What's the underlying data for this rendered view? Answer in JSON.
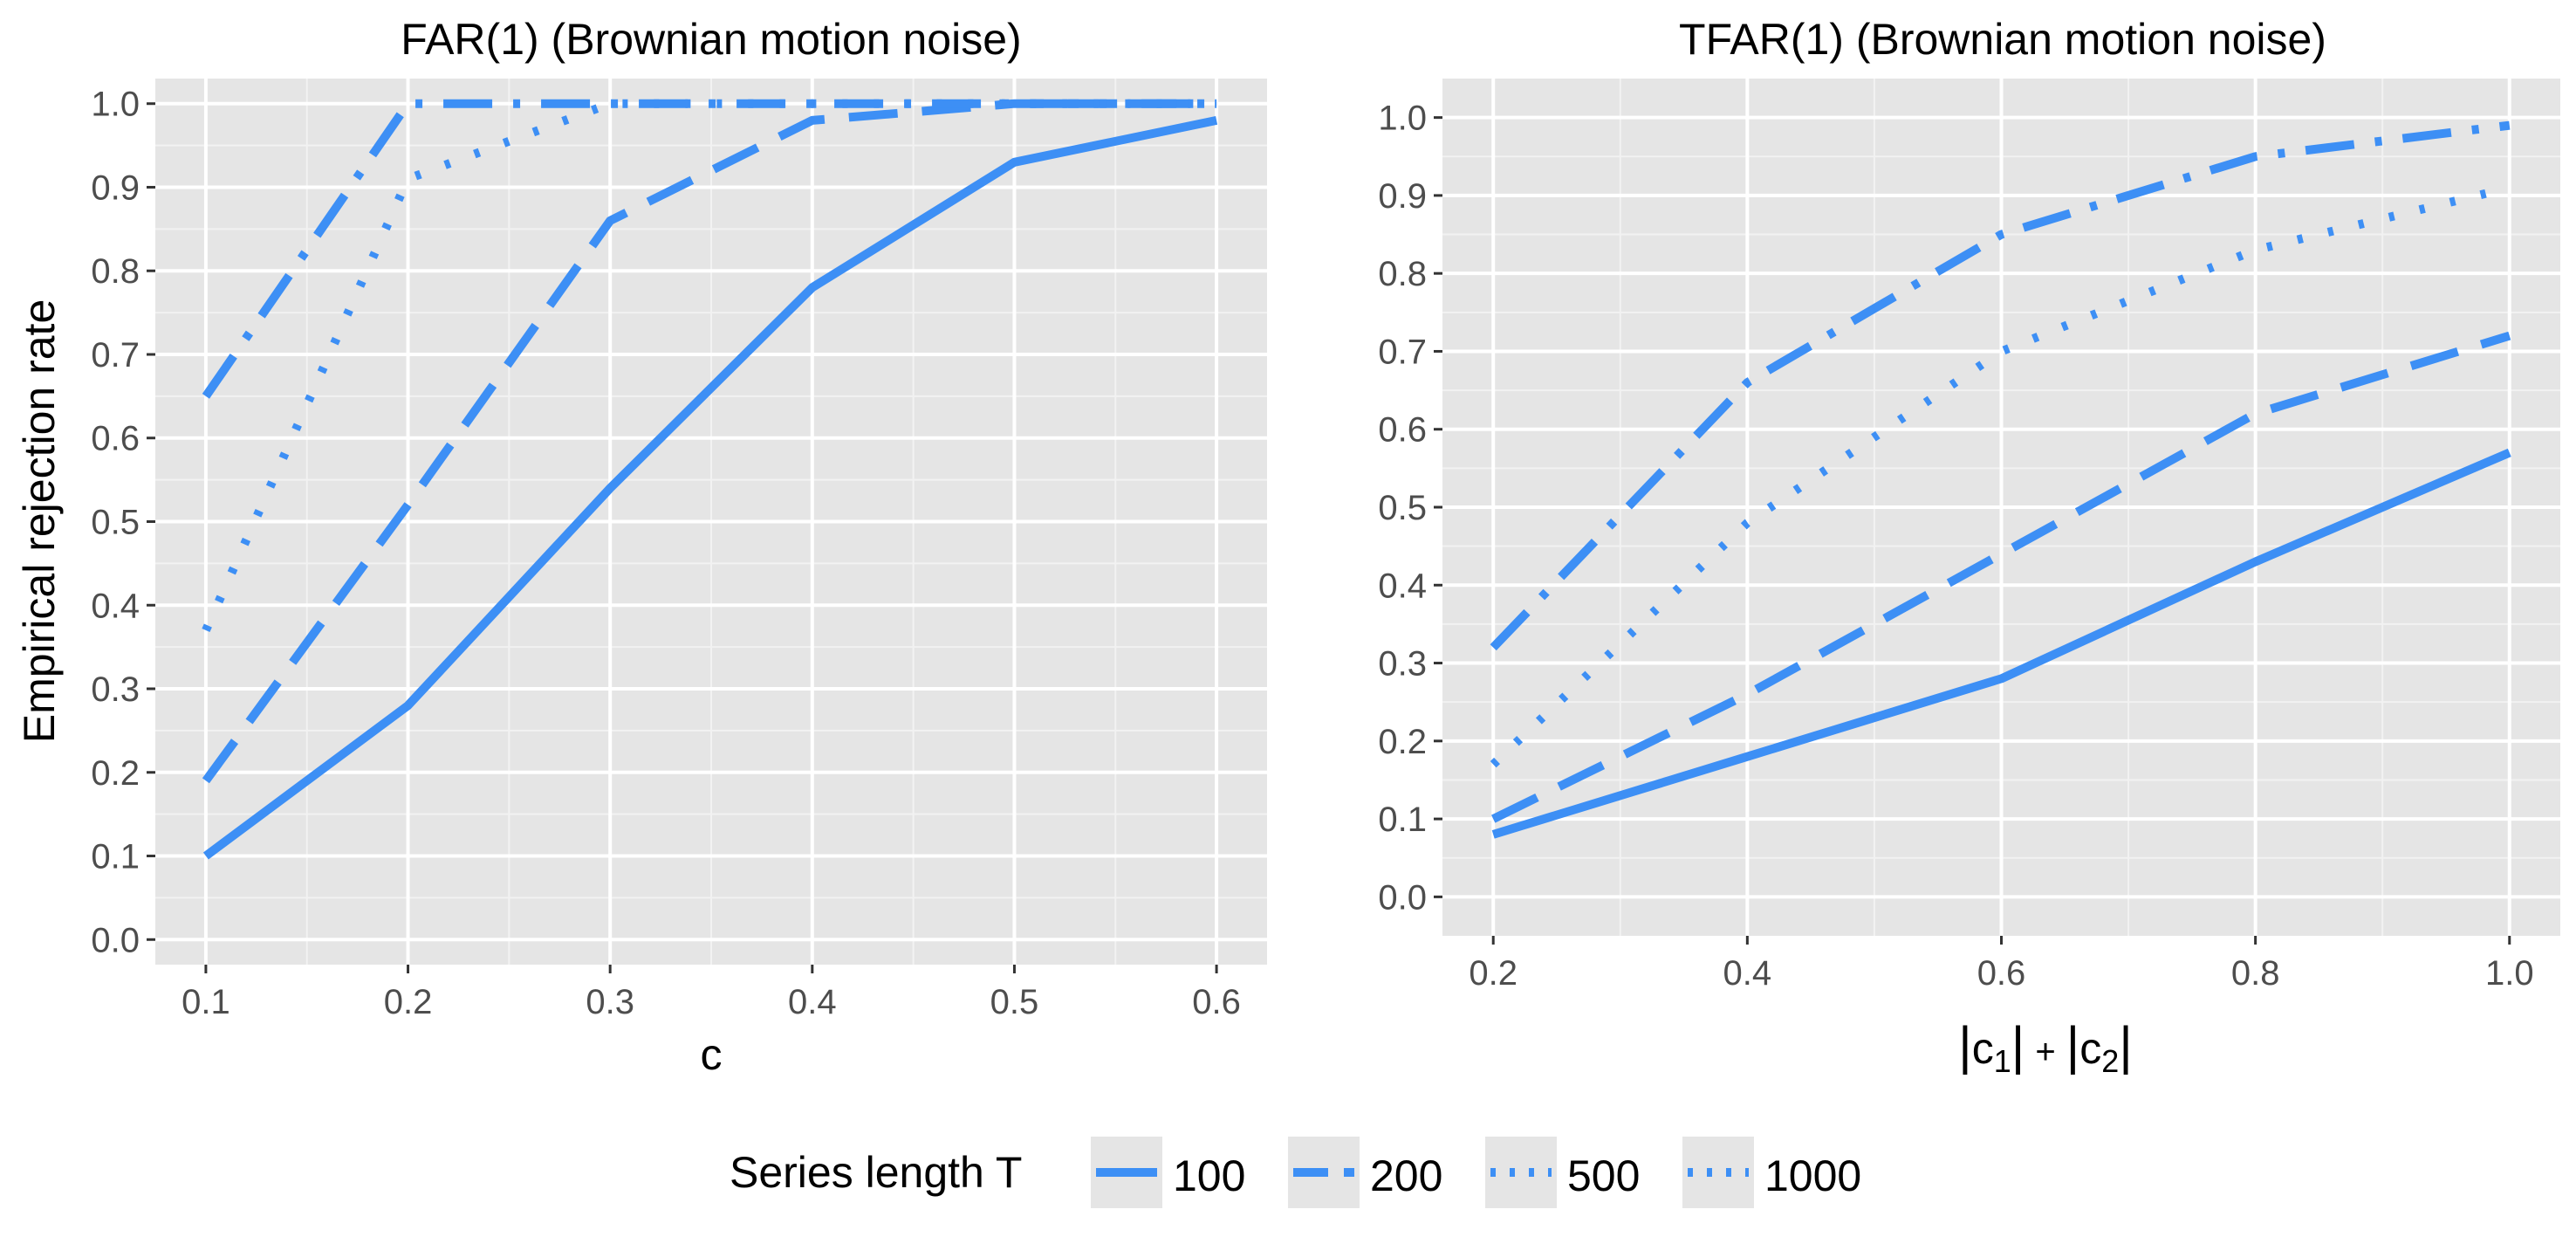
{
  "chart_data": [
    {
      "type": "line",
      "title": "FAR(1) (Brownian motion noise)",
      "xlabel": "c",
      "ylabel": "Empirical rejection rate",
      "xlim": [
        0.075,
        0.625
      ],
      "ylim": [
        -0.03,
        1.03
      ],
      "x_ticks": [
        "0.1",
        "0.2",
        "0.3",
        "0.4",
        "0.5",
        "0.6"
      ],
      "y_ticks": [
        "0.0",
        "0.1",
        "0.2",
        "0.3",
        "0.4",
        "0.5",
        "0.6",
        "0.7",
        "0.8",
        "0.9",
        "1.0"
      ],
      "grid": true,
      "series": [
        {
          "name": "100",
          "x": [
            0.1,
            0.2,
            0.3,
            0.4,
            0.5,
            0.6
          ],
          "values": [
            0.1,
            0.28,
            0.54,
            0.78,
            0.93,
            0.98
          ]
        },
        {
          "name": "200",
          "x": [
            0.1,
            0.2,
            0.3,
            0.4,
            0.5,
            0.6
          ],
          "values": [
            0.19,
            0.52,
            0.86,
            0.98,
            1.0,
            1.0
          ]
        },
        {
          "name": "500",
          "x": [
            0.1,
            0.2,
            0.3,
            0.4,
            0.5,
            0.6
          ],
          "values": [
            0.37,
            0.91,
            1.0,
            1.0,
            1.0,
            1.0
          ]
        },
        {
          "name": "1000",
          "x": [
            0.1,
            0.2,
            0.3,
            0.4,
            0.5,
            0.6
          ],
          "values": [
            0.65,
            1.0,
            1.0,
            1.0,
            1.0,
            1.0
          ]
        }
      ]
    },
    {
      "type": "line",
      "title": "TFAR(1) (Brownian motion noise)",
      "xlabel": "|c1| + |c2|",
      "xlabel_parts": {
        "bar": "|",
        "c": "c",
        "sub1": "1",
        "sub2": "2",
        "plus": "+"
      },
      "ylabel": "",
      "xlim": [
        0.16,
        1.04
      ],
      "ylim": [
        -0.05,
        1.05
      ],
      "x_ticks": [
        "0.2",
        "0.4",
        "0.6",
        "0.8",
        "1.0"
      ],
      "y_ticks": [
        "0.0",
        "0.1",
        "0.2",
        "0.3",
        "0.4",
        "0.5",
        "0.6",
        "0.7",
        "0.8",
        "0.9",
        "1.0"
      ],
      "grid": true,
      "series": [
        {
          "name": "100",
          "x": [
            0.2,
            0.4,
            0.6,
            0.8,
            1.0
          ],
          "values": [
            0.08,
            0.18,
            0.28,
            0.43,
            0.57
          ]
        },
        {
          "name": "200",
          "x": [
            0.2,
            0.4,
            0.6,
            0.8,
            1.0
          ],
          "values": [
            0.1,
            0.26,
            0.44,
            0.62,
            0.72
          ]
        },
        {
          "name": "500",
          "x": [
            0.2,
            0.4,
            0.6,
            0.8,
            1.0
          ],
          "values": [
            0.17,
            0.48,
            0.7,
            0.83,
            0.91
          ]
        },
        {
          "name": "1000",
          "x": [
            0.2,
            0.4,
            0.6,
            0.8,
            1.0
          ],
          "values": [
            0.32,
            0.66,
            0.85,
            0.95,
            0.99
          ]
        }
      ]
    }
  ],
  "legend": {
    "title": "Series length T",
    "placement": "bottom",
    "entries": [
      "100",
      "200",
      "500",
      "1000"
    ]
  },
  "colors": {
    "line": "#3d8ff5",
    "panel": "#e5e5e5",
    "grid_major": "#ffffff",
    "tick_text": "#4d4d4d"
  }
}
